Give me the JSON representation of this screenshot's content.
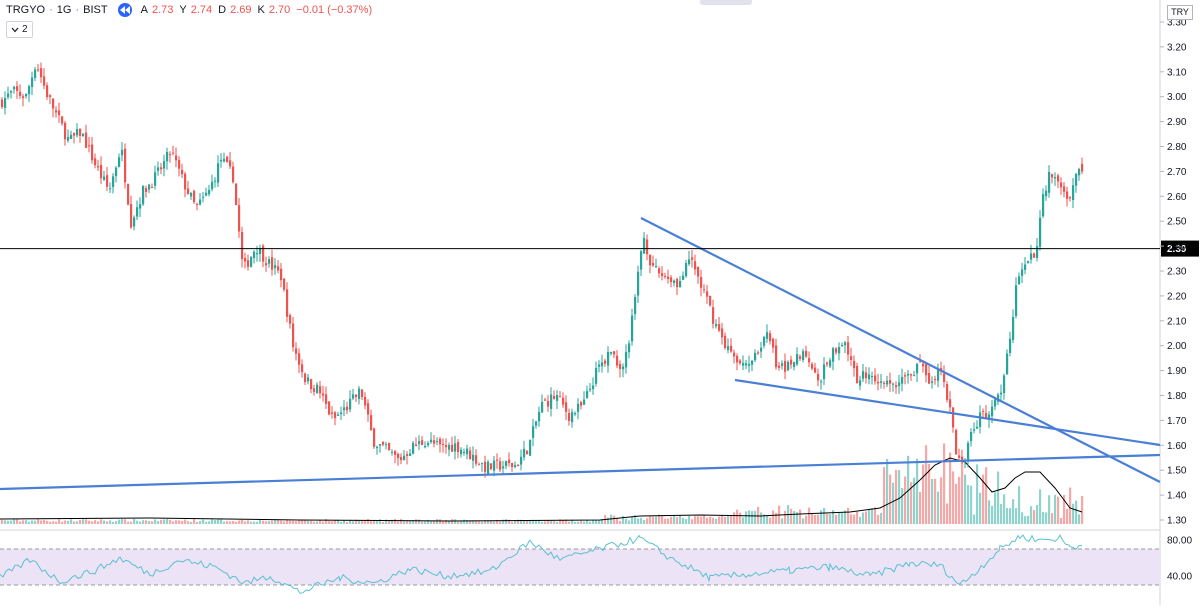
{
  "legend": {
    "symbol": "TRGYO",
    "interval": "1G",
    "exchange": "BIST",
    "open_label": "A",
    "open": "2.73",
    "high_label": "Y",
    "high": "2.74",
    "low_label": "D",
    "low": "2.69",
    "close_label": "K",
    "close": "2.70",
    "change": "−0.01 (−0.37%)"
  },
  "indicator_toggle": {
    "count": "2"
  },
  "currency": "TRY",
  "horizontal_line": {
    "price_label": "2.39"
  },
  "colors": {
    "up": "#26a69a",
    "down": "#ef5350",
    "trend": "#4a7fd6",
    "rsi": "#5bc0cf",
    "rsi_band": "#ede3f7",
    "volume_ma": "#000000"
  },
  "chart_data": [
    {
      "type": "candlestick",
      "title": "TRGYO · 1G · BIST",
      "y_axis": {
        "ticks": [
          "3.30",
          "3.20",
          "3.10",
          "3.00",
          "2.90",
          "2.80",
          "2.70",
          "2.60",
          "2.50",
          "2.40",
          "2.30",
          "2.20",
          "2.10",
          "2.00",
          "1.90",
          "1.80",
          "1.70",
          "1.60",
          "1.50",
          "1.40",
          "1.30"
        ],
        "ylim": [
          1.28,
          3.32
        ]
      },
      "ohlc_last": {
        "open": 2.73,
        "high": 2.74,
        "low": 2.69,
        "close": 2.7
      },
      "close_path": [
        {
          "x": 0,
          "y": 2.98
        },
        {
          "x": 12,
          "y": 3.02
        },
        {
          "x": 25,
          "y": 3.0
        },
        {
          "x": 35,
          "y": 3.14
        },
        {
          "x": 45,
          "y": 3.02
        },
        {
          "x": 55,
          "y": 2.93
        },
        {
          "x": 68,
          "y": 2.82
        },
        {
          "x": 80,
          "y": 2.86
        },
        {
          "x": 95,
          "y": 2.72
        },
        {
          "x": 108,
          "y": 2.62
        },
        {
          "x": 120,
          "y": 2.8
        },
        {
          "x": 130,
          "y": 2.5
        },
        {
          "x": 142,
          "y": 2.62
        },
        {
          "x": 155,
          "y": 2.68
        },
        {
          "x": 170,
          "y": 2.78
        },
        {
          "x": 182,
          "y": 2.66
        },
        {
          "x": 195,
          "y": 2.55
        },
        {
          "x": 208,
          "y": 2.62
        },
        {
          "x": 220,
          "y": 2.75
        },
        {
          "x": 232,
          "y": 2.68
        },
        {
          "x": 242,
          "y": 2.3
        },
        {
          "x": 255,
          "y": 2.4
        },
        {
          "x": 268,
          "y": 2.33
        },
        {
          "x": 280,
          "y": 2.28
        },
        {
          "x": 292,
          "y": 2.0
        },
        {
          "x": 305,
          "y": 1.86
        },
        {
          "x": 318,
          "y": 1.82
        },
        {
          "x": 332,
          "y": 1.7
        },
        {
          "x": 345,
          "y": 1.75
        },
        {
          "x": 360,
          "y": 1.82
        },
        {
          "x": 372,
          "y": 1.62
        },
        {
          "x": 385,
          "y": 1.58
        },
        {
          "x": 398,
          "y": 1.54
        },
        {
          "x": 410,
          "y": 1.59
        },
        {
          "x": 425,
          "y": 1.62
        },
        {
          "x": 440,
          "y": 1.59
        },
        {
          "x": 455,
          "y": 1.6
        },
        {
          "x": 470,
          "y": 1.56
        },
        {
          "x": 485,
          "y": 1.51
        },
        {
          "x": 500,
          "y": 1.52
        },
        {
          "x": 515,
          "y": 1.52
        },
        {
          "x": 528,
          "y": 1.6
        },
        {
          "x": 540,
          "y": 1.76
        },
        {
          "x": 555,
          "y": 1.8
        },
        {
          "x": 568,
          "y": 1.72
        },
        {
          "x": 582,
          "y": 1.76
        },
        {
          "x": 596,
          "y": 1.9
        },
        {
          "x": 610,
          "y": 1.98
        },
        {
          "x": 622,
          "y": 1.9
        },
        {
          "x": 632,
          "y": 2.12
        },
        {
          "x": 642,
          "y": 2.45
        },
        {
          "x": 652,
          "y": 2.3
        },
        {
          "x": 665,
          "y": 2.28
        },
        {
          "x": 678,
          "y": 2.25
        },
        {
          "x": 690,
          "y": 2.35
        },
        {
          "x": 702,
          "y": 2.22
        },
        {
          "x": 715,
          "y": 2.08
        },
        {
          "x": 728,
          "y": 1.98
        },
        {
          "x": 740,
          "y": 1.9
        },
        {
          "x": 752,
          "y": 1.96
        },
        {
          "x": 765,
          "y": 2.05
        },
        {
          "x": 778,
          "y": 1.9
        },
        {
          "x": 790,
          "y": 1.94
        },
        {
          "x": 805,
          "y": 1.98
        },
        {
          "x": 818,
          "y": 1.86
        },
        {
          "x": 830,
          "y": 1.96
        },
        {
          "x": 842,
          "y": 2.03
        },
        {
          "x": 855,
          "y": 1.86
        },
        {
          "x": 868,
          "y": 1.9
        },
        {
          "x": 880,
          "y": 1.84
        },
        {
          "x": 892,
          "y": 1.85
        },
        {
          "x": 905,
          "y": 1.87
        },
        {
          "x": 918,
          "y": 1.93
        },
        {
          "x": 928,
          "y": 1.85
        },
        {
          "x": 938,
          "y": 1.9
        },
        {
          "x": 948,
          "y": 1.78
        },
        {
          "x": 955,
          "y": 1.55
        },
        {
          "x": 962,
          "y": 1.52
        },
        {
          "x": 970,
          "y": 1.63
        },
        {
          "x": 980,
          "y": 1.72
        },
        {
          "x": 992,
          "y": 1.75
        },
        {
          "x": 1000,
          "y": 1.82
        },
        {
          "x": 1008,
          "y": 2.0
        },
        {
          "x": 1015,
          "y": 2.22
        },
        {
          "x": 1025,
          "y": 2.35
        },
        {
          "x": 1035,
          "y": 2.38
        },
        {
          "x": 1043,
          "y": 2.62
        },
        {
          "x": 1050,
          "y": 2.7
        },
        {
          "x": 1060,
          "y": 2.66
        },
        {
          "x": 1068,
          "y": 2.56
        },
        {
          "x": 1075,
          "y": 2.7
        },
        {
          "x": 1082,
          "y": 2.71
        }
      ],
      "horizontal_level": 2.39
    },
    {
      "type": "line",
      "y_axis": {
        "ticks": [
          "80.00",
          "40.00"
        ],
        "ylim": [
          20,
          95
        ],
        "band": [
          30,
          70
        ]
      },
      "series": [
        {
          "values": [
            {
              "x": 0,
              "y": 38
            },
            {
              "x": 30,
              "y": 58
            },
            {
              "x": 60,
              "y": 34
            },
            {
              "x": 95,
              "y": 46
            },
            {
              "x": 120,
              "y": 60
            },
            {
              "x": 150,
              "y": 42
            },
            {
              "x": 180,
              "y": 58
            },
            {
              "x": 215,
              "y": 50
            },
            {
              "x": 245,
              "y": 32
            },
            {
              "x": 270,
              "y": 40
            },
            {
              "x": 300,
              "y": 22
            },
            {
              "x": 340,
              "y": 38
            },
            {
              "x": 375,
              "y": 32
            },
            {
              "x": 410,
              "y": 48
            },
            {
              "x": 445,
              "y": 40
            },
            {
              "x": 490,
              "y": 45
            },
            {
              "x": 530,
              "y": 78
            },
            {
              "x": 560,
              "y": 58
            },
            {
              "x": 600,
              "y": 70
            },
            {
              "x": 640,
              "y": 82
            },
            {
              "x": 670,
              "y": 60
            },
            {
              "x": 710,
              "y": 38
            },
            {
              "x": 750,
              "y": 42
            },
            {
              "x": 790,
              "y": 46
            },
            {
              "x": 830,
              "y": 50
            },
            {
              "x": 870,
              "y": 40
            },
            {
              "x": 910,
              "y": 54
            },
            {
              "x": 940,
              "y": 52
            },
            {
              "x": 960,
              "y": 30
            },
            {
              "x": 975,
              "y": 44
            },
            {
              "x": 1000,
              "y": 70
            },
            {
              "x": 1020,
              "y": 84
            },
            {
              "x": 1040,
              "y": 80
            },
            {
              "x": 1060,
              "y": 82
            },
            {
              "x": 1070,
              "y": 72
            },
            {
              "x": 1082,
              "y": 74
            }
          ]
        }
      ]
    }
  ]
}
